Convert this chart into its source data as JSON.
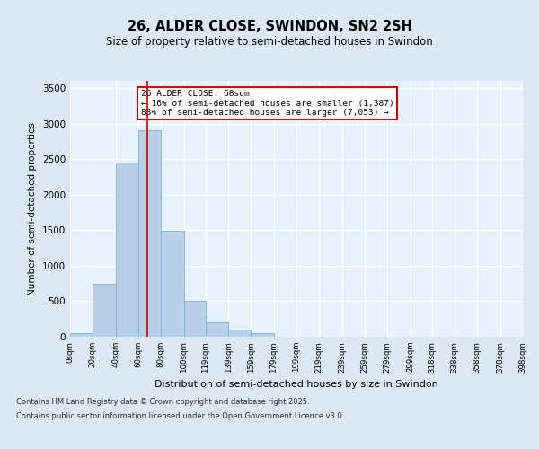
{
  "title_line1": "26, ALDER CLOSE, SWINDON, SN2 2SH",
  "title_line2": "Size of property relative to semi-detached houses in Swindon",
  "xlabel": "Distribution of semi-detached houses by size in Swindon",
  "ylabel": "Number of semi-detached properties",
  "bin_labels": [
    "0sqm",
    "20sqm",
    "40sqm",
    "60sqm",
    "80sqm",
    "100sqm",
    "119sqm",
    "139sqm",
    "159sqm",
    "179sqm",
    "199sqm",
    "219sqm",
    "239sqm",
    "259sqm",
    "279sqm",
    "299sqm",
    "318sqm",
    "338sqm",
    "358sqm",
    "378sqm",
    "398sqm"
  ],
  "bin_edges": [
    0,
    20,
    40,
    60,
    80,
    100,
    119,
    139,
    159,
    179,
    199,
    219,
    239,
    259,
    279,
    299,
    318,
    338,
    358,
    378,
    398
  ],
  "bar_heights": [
    50,
    750,
    2450,
    2900,
    1490,
    500,
    200,
    100,
    55,
    0,
    0,
    0,
    0,
    0,
    0,
    0,
    0,
    0,
    0,
    0
  ],
  "bar_color": "#b8d0ea",
  "bar_edge_color": "#7aafd4",
  "property_size": 68,
  "property_label": "26 ALDER CLOSE: 68sqm",
  "pct_smaller": 16,
  "count_smaller": 1387,
  "pct_larger": 83,
  "count_larger": 7053,
  "vline_color": "#cc0000",
  "annotation_box_color": "#cc0000",
  "ylim": [
    0,
    3600
  ],
  "yticks": [
    0,
    500,
    1000,
    1500,
    2000,
    2500,
    3000,
    3500
  ],
  "background_color": "#dce8f5",
  "plot_bg_color": "#e8f2fc",
  "footer_line1": "Contains HM Land Registry data © Crown copyright and database right 2025.",
  "footer_line2": "Contains public sector information licensed under the Open Government Licence v3.0."
}
